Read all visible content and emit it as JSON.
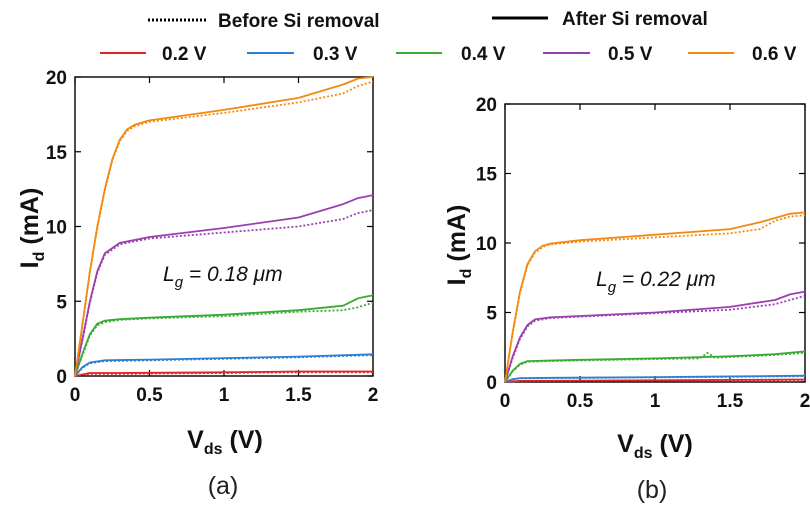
{
  "legend": {
    "style_entries": [
      {
        "label": "Before Si removal",
        "dash": "dotted"
      },
      {
        "label": "After Si removal",
        "dash": "solid"
      }
    ],
    "voltage_entries": [
      {
        "label": "0.2 V",
        "color": "#e02424"
      },
      {
        "label": "0.3 V",
        "color": "#2f7fd0"
      },
      {
        "label": "0.4 V",
        "color": "#3aaa35"
      },
      {
        "label": "0.5 V",
        "color": "#9b3fb0"
      },
      {
        "label": "0.6 V",
        "color": "#f28a12"
      }
    ]
  },
  "chart_data": [
    {
      "type": "line",
      "panel_label": "(a)",
      "annotation": {
        "main": "L",
        "sub": "g",
        "rest": " = 0.18 μm"
      },
      "xlabel": {
        "main": "V",
        "sub": "ds",
        "rest": " (V)"
      },
      "ylabel": {
        "main": "I",
        "sub": "d",
        "rest": " (mA)"
      },
      "xlim": [
        0,
        2
      ],
      "ylim": [
        0,
        20
      ],
      "xticks": [
        "0",
        "0.5",
        "1",
        "1.5",
        "2"
      ],
      "yticks": [
        "0",
        "5",
        "10",
        "15",
        "20"
      ],
      "series": [
        {
          "name": "0.2 V",
          "color": "#e02424",
          "after": [
            [
              0,
              0
            ],
            [
              0.1,
              0.2
            ],
            [
              0.3,
              0.2
            ],
            [
              1,
              0.25
            ],
            [
              1.5,
              0.3
            ],
            [
              2,
              0.3
            ]
          ],
          "before": [
            [
              0,
              0
            ],
            [
              0.1,
              0.15
            ],
            [
              0.3,
              0.15
            ],
            [
              1,
              0.2
            ],
            [
              1.5,
              0.25
            ],
            [
              2,
              0.25
            ]
          ]
        },
        {
          "name": "0.3 V",
          "color": "#2f7fd0",
          "after": [
            [
              0,
              0
            ],
            [
              0.05,
              0.6
            ],
            [
              0.1,
              0.9
            ],
            [
              0.2,
              1.05
            ],
            [
              0.5,
              1.1
            ],
            [
              1,
              1.2
            ],
            [
              1.5,
              1.3
            ],
            [
              2,
              1.45
            ]
          ],
          "before": [
            [
              0,
              0
            ],
            [
              0.05,
              0.55
            ],
            [
              0.1,
              0.85
            ],
            [
              0.2,
              1.0
            ],
            [
              0.5,
              1.05
            ],
            [
              1,
              1.15
            ],
            [
              1.5,
              1.25
            ],
            [
              2,
              1.4
            ]
          ]
        },
        {
          "name": "0.4 V",
          "color": "#3aaa35",
          "after": [
            [
              0,
              0
            ],
            [
              0.05,
              1.5
            ],
            [
              0.1,
              2.8
            ],
            [
              0.15,
              3.5
            ],
            [
              0.2,
              3.7
            ],
            [
              0.3,
              3.8
            ],
            [
              0.5,
              3.9
            ],
            [
              1,
              4.1
            ],
            [
              1.5,
              4.4
            ],
            [
              1.8,
              4.7
            ],
            [
              1.9,
              5.2
            ],
            [
              2,
              5.4
            ]
          ],
          "before": [
            [
              0,
              0
            ],
            [
              0.05,
              1.4
            ],
            [
              0.1,
              2.7
            ],
            [
              0.15,
              3.4
            ],
            [
              0.2,
              3.6
            ],
            [
              0.3,
              3.75
            ],
            [
              0.5,
              3.85
            ],
            [
              1,
              4.0
            ],
            [
              1.5,
              4.3
            ],
            [
              1.8,
              4.4
            ],
            [
              1.9,
              4.6
            ],
            [
              2,
              4.9
            ]
          ]
        },
        {
          "name": "0.5 V",
          "color": "#9b3fb0",
          "after": [
            [
              0,
              0
            ],
            [
              0.05,
              2.5
            ],
            [
              0.1,
              5
            ],
            [
              0.15,
              7
            ],
            [
              0.2,
              8.2
            ],
            [
              0.3,
              8.9
            ],
            [
              0.4,
              9.1
            ],
            [
              0.5,
              9.3
            ],
            [
              1,
              9.9
            ],
            [
              1.5,
              10.6
            ],
            [
              1.8,
              11.5
            ],
            [
              1.9,
              11.9
            ],
            [
              2,
              12.1
            ]
          ],
          "before": [
            [
              0,
              0
            ],
            [
              0.05,
              2.4
            ],
            [
              0.1,
              4.9
            ],
            [
              0.15,
              6.9
            ],
            [
              0.2,
              8.1
            ],
            [
              0.3,
              8.8
            ],
            [
              0.4,
              9.0
            ],
            [
              0.5,
              9.2
            ],
            [
              1,
              9.6
            ],
            [
              1.5,
              10.0
            ],
            [
              1.8,
              10.5
            ],
            [
              1.9,
              10.9
            ],
            [
              2,
              11.1
            ]
          ]
        },
        {
          "name": "0.6 V",
          "color": "#f28a12",
          "after": [
            [
              0,
              0
            ],
            [
              0.05,
              3.5
            ],
            [
              0.1,
              7
            ],
            [
              0.15,
              10
            ],
            [
              0.2,
              12.5
            ],
            [
              0.25,
              14.5
            ],
            [
              0.3,
              15.8
            ],
            [
              0.35,
              16.5
            ],
            [
              0.4,
              16.8
            ],
            [
              0.5,
              17.1
            ],
            [
              1,
              17.8
            ],
            [
              1.5,
              18.6
            ],
            [
              1.8,
              19.5
            ],
            [
              1.9,
              19.9
            ],
            [
              2,
              20
            ]
          ],
          "before": [
            [
              0,
              0
            ],
            [
              0.05,
              3.4
            ],
            [
              0.1,
              6.9
            ],
            [
              0.15,
              9.9
            ],
            [
              0.2,
              12.4
            ],
            [
              0.25,
              14.4
            ],
            [
              0.3,
              15.7
            ],
            [
              0.35,
              16.4
            ],
            [
              0.4,
              16.7
            ],
            [
              0.5,
              17.0
            ],
            [
              1,
              17.6
            ],
            [
              1.5,
              18.3
            ],
            [
              1.8,
              18.9
            ],
            [
              1.9,
              19.4
            ],
            [
              2,
              19.7
            ]
          ]
        }
      ]
    },
    {
      "type": "line",
      "panel_label": "(b)",
      "annotation": {
        "main": "L",
        "sub": "g",
        "rest": " = 0.22 μm"
      },
      "xlabel": {
        "main": "V",
        "sub": "ds",
        "rest": " (V)"
      },
      "ylabel": {
        "main": "I",
        "sub": "d",
        "rest": " (mA)"
      },
      "xlim": [
        0,
        2
      ],
      "ylim": [
        0,
        20
      ],
      "xticks": [
        "0",
        "0.5",
        "1",
        "1.5",
        "2"
      ],
      "yticks": [
        "0",
        "5",
        "10",
        "15",
        "20"
      ],
      "series": [
        {
          "name": "0.2 V",
          "color": "#e02424",
          "after": [
            [
              0,
              0
            ],
            [
              0.1,
              0.08
            ],
            [
              0.5,
              0.1
            ],
            [
              1,
              0.12
            ],
            [
              1.5,
              0.15
            ],
            [
              2,
              0.18
            ]
          ],
          "before": [
            [
              0,
              0
            ],
            [
              0.1,
              0.06
            ],
            [
              0.5,
              0.08
            ],
            [
              1,
              0.1
            ],
            [
              1.5,
              0.12
            ],
            [
              2,
              0.15
            ]
          ]
        },
        {
          "name": "0.3 V",
          "color": "#2f7fd0",
          "after": [
            [
              0,
              0
            ],
            [
              0.05,
              0.2
            ],
            [
              0.1,
              0.28
            ],
            [
              0.3,
              0.3
            ],
            [
              1,
              0.35
            ],
            [
              1.5,
              0.4
            ],
            [
              2,
              0.45
            ]
          ],
          "before": [
            [
              0,
              0
            ],
            [
              0.05,
              0.18
            ],
            [
              0.1,
              0.26
            ],
            [
              0.3,
              0.28
            ],
            [
              1,
              0.33
            ],
            [
              1.5,
              0.37
            ],
            [
              2,
              0.42
            ]
          ]
        },
        {
          "name": "0.4 V",
          "color": "#3aaa35",
          "after": [
            [
              0,
              0
            ],
            [
              0.05,
              0.8
            ],
            [
              0.1,
              1.3
            ],
            [
              0.15,
              1.5
            ],
            [
              0.3,
              1.55
            ],
            [
              0.5,
              1.6
            ],
            [
              1,
              1.7
            ],
            [
              1.5,
              1.85
            ],
            [
              1.8,
              2.0
            ],
            [
              2,
              2.2
            ]
          ],
          "before": [
            [
              0,
              0
            ],
            [
              0.05,
              0.75
            ],
            [
              0.1,
              1.25
            ],
            [
              0.15,
              1.45
            ],
            [
              0.3,
              1.5
            ],
            [
              0.5,
              1.55
            ],
            [
              1,
              1.65
            ],
            [
              1.3,
              1.7
            ],
            [
              1.35,
              2.1
            ],
            [
              1.4,
              1.75
            ],
            [
              1.5,
              1.8
            ],
            [
              1.8,
              1.95
            ],
            [
              2,
              2.1
            ]
          ]
        },
        {
          "name": "0.5 V",
          "color": "#9b3fb0",
          "after": [
            [
              0,
              0
            ],
            [
              0.05,
              1.8
            ],
            [
              0.1,
              3.2
            ],
            [
              0.15,
              4.1
            ],
            [
              0.2,
              4.5
            ],
            [
              0.3,
              4.65
            ],
            [
              0.5,
              4.75
            ],
            [
              1,
              5.0
            ],
            [
              1.5,
              5.4
            ],
            [
              1.8,
              5.9
            ],
            [
              1.9,
              6.3
            ],
            [
              2,
              6.5
            ]
          ],
          "before": [
            [
              0,
              0
            ],
            [
              0.05,
              1.7
            ],
            [
              0.1,
              3.1
            ],
            [
              0.15,
              4.0
            ],
            [
              0.2,
              4.4
            ],
            [
              0.3,
              4.6
            ],
            [
              0.5,
              4.7
            ],
            [
              1,
              4.95
            ],
            [
              1.5,
              5.2
            ],
            [
              1.8,
              5.6
            ],
            [
              1.9,
              5.9
            ],
            [
              2,
              6.2
            ]
          ]
        },
        {
          "name": "0.6 V",
          "color": "#f28a12",
          "after": [
            [
              0,
              0
            ],
            [
              0.05,
              3.5
            ],
            [
              0.1,
              6.5
            ],
            [
              0.15,
              8.5
            ],
            [
              0.2,
              9.4
            ],
            [
              0.25,
              9.8
            ],
            [
              0.3,
              9.95
            ],
            [
              0.5,
              10.2
            ],
            [
              1,
              10.6
            ],
            [
              1.5,
              11.0
            ],
            [
              1.7,
              11.5
            ],
            [
              1.9,
              12.1
            ],
            [
              2,
              12.2
            ]
          ],
          "before": [
            [
              0,
              0
            ],
            [
              0.05,
              3.4
            ],
            [
              0.1,
              6.4
            ],
            [
              0.15,
              8.4
            ],
            [
              0.2,
              9.3
            ],
            [
              0.25,
              9.7
            ],
            [
              0.3,
              9.9
            ],
            [
              0.5,
              10.1
            ],
            [
              1,
              10.4
            ],
            [
              1.5,
              10.7
            ],
            [
              1.7,
              11.0
            ],
            [
              1.8,
              11.6
            ],
            [
              1.9,
              11.9
            ],
            [
              2,
              12.0
            ]
          ]
        }
      ]
    }
  ]
}
